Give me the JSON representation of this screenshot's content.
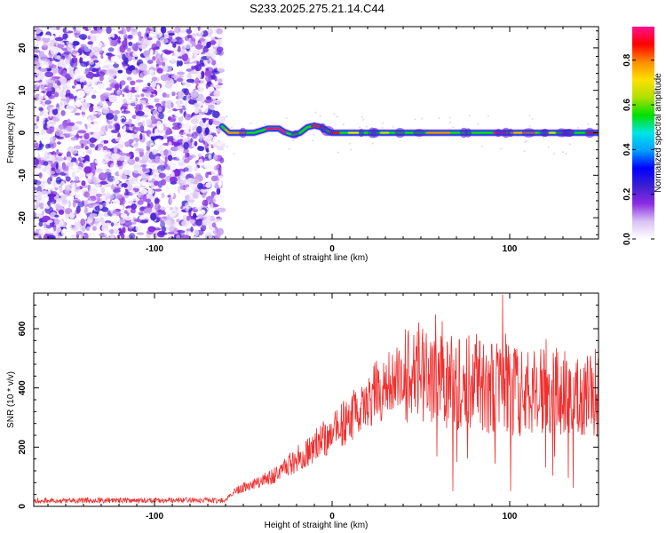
{
  "title": "S233.2025.275.21.14.C44",
  "chart_data": [
    {
      "type": "heatmap",
      "xlabel": "Height of straight line (km)",
      "ylabel": "Frequency (Hz)",
      "xlim": [
        -168,
        150
      ],
      "ylim": [
        -25,
        25
      ],
      "xticks": [
        -100,
        0,
        100
      ],
      "yticks": [
        -20,
        -10,
        0,
        10,
        20
      ],
      "xtick_labels": [
        "-100",
        "0",
        "100"
      ],
      "ytick_labels": [
        "-20",
        "-10",
        "0",
        "10",
        "20"
      ],
      "noise_region": {
        "x_from": -168,
        "x_to": -62,
        "amplitude_range": [
          0.0,
          0.25
        ]
      },
      "ridge": {
        "frequency_path": [
          [
            -62,
            1.5
          ],
          [
            -58,
            0.0
          ],
          [
            -50,
            0.0
          ],
          [
            -44,
            0.0
          ],
          [
            -40,
            0.5
          ],
          [
            -36,
            1.0
          ],
          [
            -30,
            1.0
          ],
          [
            -27,
            0.2
          ],
          [
            -22,
            -0.5
          ],
          [
            -18,
            0.0
          ],
          [
            -14,
            1.3
          ],
          [
            -10,
            1.7
          ],
          [
            -6,
            1.3
          ],
          [
            -2,
            0.3
          ],
          [
            0,
            0.0
          ],
          [
            20,
            0.0
          ],
          [
            60,
            0.0
          ],
          [
            100,
            0.0
          ],
          [
            150,
            0.0
          ]
        ],
        "amplitude": 0.95
      },
      "colorbar": {
        "label": "Normalized spectral amplitude",
        "range": [
          0.0,
          0.95
        ],
        "ticks": [
          "0.0",
          "0.2",
          "0.4",
          "0.6",
          "0.8"
        ],
        "tick_values": [
          0.0,
          0.2,
          0.4,
          0.6,
          0.8
        ],
        "colors": [
          "#ffffff",
          "#d9c2f5",
          "#8a2be2",
          "#3b20d0",
          "#0000ff",
          "#00a0ff",
          "#00e5e5",
          "#00e000",
          "#b0e000",
          "#ffe000",
          "#ff8c00",
          "#ff0000",
          "#ff1090"
        ]
      }
    },
    {
      "type": "line",
      "xlabel": "Height of straight line (km)",
      "ylabel": "SNR (10 * v/v)",
      "xlim": [
        -168,
        150
      ],
      "ylim": [
        0,
        720
      ],
      "xticks": [
        -100,
        0,
        100
      ],
      "yticks": [
        0,
        200,
        400,
        600
      ],
      "xtick_labels": [
        "-100",
        "0",
        "100"
      ],
      "ytick_labels": [
        "0",
        "200",
        "400",
        "600"
      ],
      "color": "#f03030",
      "series": [
        {
          "name": "SNR",
          "trend": [
            [
              -168,
              20
            ],
            [
              -100,
              20
            ],
            [
              -60,
              20
            ],
            [
              -55,
              50
            ],
            [
              -40,
              85
            ],
            [
              -30,
              110
            ],
            [
              -20,
              160
            ],
            [
              -10,
              200
            ],
            [
              0,
              250
            ],
            [
              10,
              300
            ],
            [
              20,
              360
            ],
            [
              30,
              410
            ],
            [
              40,
              440
            ],
            [
              50,
              450
            ],
            [
              60,
              430
            ],
            [
              70,
              420
            ],
            [
              80,
              400
            ],
            [
              90,
              400
            ],
            [
              100,
              390
            ],
            [
              110,
              380
            ],
            [
              120,
              380
            ],
            [
              130,
              380
            ],
            [
              140,
              370
            ],
            [
              150,
              360
            ]
          ],
          "peak": [
            96,
            715
          ]
        }
      ]
    }
  ]
}
